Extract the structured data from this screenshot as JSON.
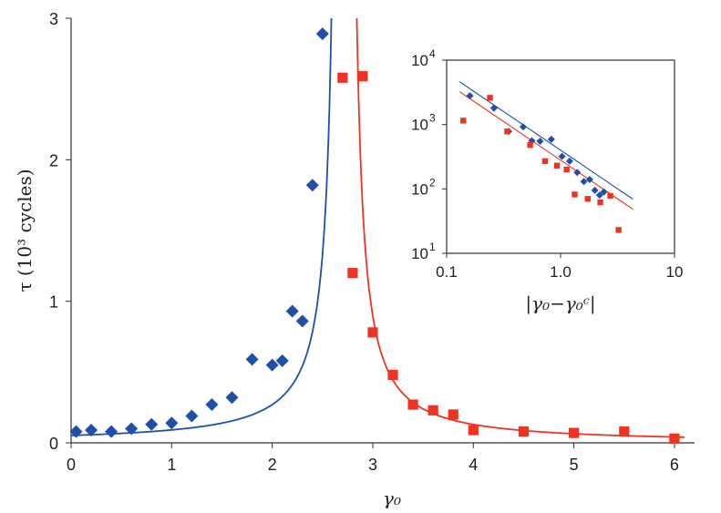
{
  "chart_data": [
    {
      "type": "scatter",
      "title": "",
      "xlabel": "γ₀",
      "ylabel": "τ (10³ cycles)",
      "xlim": [
        0,
        6.2
      ],
      "ylim": [
        0,
        3
      ],
      "xticks": [
        "0",
        "1",
        "2",
        "3",
        "4",
        "5",
        "6"
      ],
      "yticks": [
        "0",
        "1",
        "2",
        "3"
      ],
      "grid": false,
      "fit_lines": true,
      "series": [
        {
          "color": "#1f4fa8",
          "marker": "diamond",
          "x": [
            0.05,
            0.2,
            0.4,
            0.6,
            0.8,
            1.0,
            1.2,
            1.4,
            1.6,
            1.8,
            2.0,
            2.1,
            2.2,
            2.3,
            2.4,
            2.5
          ],
          "y": [
            0.08,
            0.09,
            0.08,
            0.1,
            0.13,
            0.14,
            0.19,
            0.27,
            0.32,
            0.59,
            0.55,
            0.58,
            0.93,
            0.86,
            1.82,
            2.89
          ]
        },
        {
          "color": "#ee3322",
          "marker": "square",
          "x": [
            2.7,
            2.8,
            2.9,
            3.0,
            3.2,
            3.4,
            3.6,
            3.8,
            4.0,
            4.5,
            5.0,
            5.5,
            6.0
          ],
          "y": [
            2.58,
            1.2,
            2.59,
            0.78,
            0.48,
            0.27,
            0.23,
            0.2,
            0.09,
            0.08,
            0.07,
            0.08,
            0.03
          ]
        }
      ]
    },
    {
      "type": "scatter",
      "title": "",
      "xlabel": "|γ₀−γ₀ᶜ|",
      "ylabel": "",
      "x_scale": "log",
      "y_scale": "log",
      "xlim": [
        0.1,
        10
      ],
      "ylim": [
        10,
        10000
      ],
      "xticks": [
        "0.1",
        "1.0",
        "10"
      ],
      "yticks": [
        "10",
        "10",
        "10",
        "10"
      ],
      "ytick_exponents": [
        "1",
        "2",
        "3",
        "4"
      ],
      "grid": false,
      "fit_lines": true,
      "series": [
        {
          "color": "#1f4fa8",
          "marker": "diamond",
          "x": [
            0.16,
            0.26,
            0.35,
            0.47,
            0.56,
            0.66,
            0.83,
            1.03,
            1.2,
            1.4,
            1.6,
            1.8,
            2.0,
            2.2,
            2.4
          ],
          "y": [
            2800,
            1800,
            780,
            920,
            560,
            550,
            590,
            320,
            270,
            180,
            130,
            140,
            95,
            80,
            90
          ]
        },
        {
          "color": "#ee3322",
          "marker": "square",
          "x": [
            0.14,
            0.24,
            0.34,
            0.54,
            0.73,
            0.93,
            1.13,
            1.33,
            1.73,
            2.23,
            2.73,
            3.23
          ],
          "y": [
            1150,
            2600,
            780,
            480,
            270,
            230,
            200,
            82,
            70,
            62,
            78,
            23
          ]
        }
      ]
    }
  ],
  "fits": {
    "blue_color": "#1f4fa8",
    "red_color": "#ee3322",
    "critical_blue": 2.68,
    "critical_red": 2.75,
    "main_amp": 0.17,
    "exponent": 1.2,
    "inset_blue_amp": 400,
    "inset_red_amp": 280
  }
}
